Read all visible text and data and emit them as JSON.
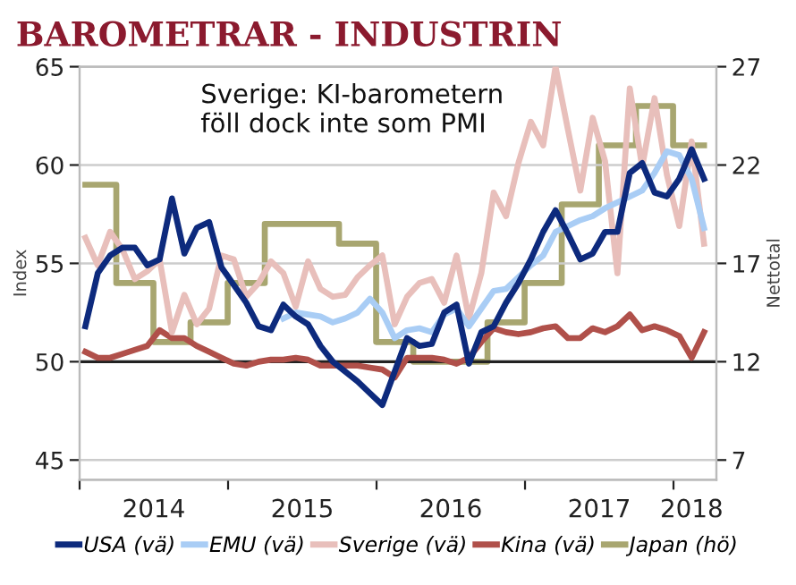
{
  "chart_data": {
    "type": "line",
    "title": "BAROMETRAR - INDUSTRIN",
    "ylabel": "Index",
    "y2label": "Nettotal",
    "annotations": [
      "Sverige: KI-barometern\nföll dock inte som PMI"
    ],
    "x": [
      "2014-01-15",
      "2014-02-15",
      "2014-03-15",
      "2014-04-15",
      "2014-05-15",
      "2014-06-15",
      "2014-07-15",
      "2014-08-15",
      "2014-09-15",
      "2014-10-15",
      "2014-11-15",
      "2014-12-15",
      "2015-01-15",
      "2015-02-15",
      "2015-03-15",
      "2015-04-15",
      "2015-05-15",
      "2015-06-15",
      "2015-07-15",
      "2015-08-15",
      "2015-09-15",
      "2015-10-15",
      "2015-11-15",
      "2015-12-15",
      "2016-01-15",
      "2016-02-15",
      "2016-03-15",
      "2016-04-15",
      "2016-05-15",
      "2016-06-15",
      "2016-07-15",
      "2016-08-15",
      "2016-09-15",
      "2016-10-15",
      "2016-11-15",
      "2016-12-15",
      "2017-01-15",
      "2017-02-15",
      "2017-03-15",
      "2017-04-15",
      "2017-05-15",
      "2017-06-15",
      "2017-07-15",
      "2017-08-15",
      "2017-09-15",
      "2017-10-15",
      "2017-11-15",
      "2017-12-15",
      "2018-01-15",
      "2018-02-15",
      "2018-03-15"
    ],
    "series": [
      {
        "name": "USA (vä)",
        "color": "#0d2a7d",
        "values": [
          51.8,
          54.5,
          55.4,
          55.8,
          55.8,
          54.9,
          55.2,
          58.3,
          55.5,
          56.8,
          57.1,
          54.8,
          53.9,
          53.0,
          51.8,
          51.6,
          52.9,
          52.3,
          51.9,
          50.8,
          50.0,
          49.5,
          49.0,
          48.4,
          47.8,
          49.5,
          51.2,
          50.8,
          50.9,
          52.5,
          52.9,
          49.9,
          51.5,
          51.8,
          53.0,
          54.0,
          55.2,
          56.6,
          57.7,
          56.5,
          55.2,
          55.5,
          56.6,
          56.6,
          59.6,
          60.1,
          58.6,
          58.4,
          59.3,
          60.8,
          59.3
        ]
      },
      {
        "name": "EMU (vä)",
        "color": "#a9cdf5",
        "values": [
          null,
          null,
          null,
          null,
          null,
          null,
          null,
          null,
          null,
          null,
          null,
          null,
          null,
          null,
          null,
          null,
          52.2,
          52.5,
          52.4,
          52.3,
          52.0,
          52.2,
          52.5,
          53.2,
          52.5,
          51.2,
          51.6,
          51.7,
          51.5,
          52.4,
          52.7,
          51.8,
          52.7,
          53.6,
          53.7,
          54.3,
          54.9,
          55.4,
          56.6,
          56.9,
          57.2,
          57.4,
          57.8,
          58.1,
          58.4,
          58.7,
          59.6,
          60.7,
          60.5,
          59.3,
          56.8
        ]
      },
      {
        "name": "Sverige (vä)",
        "color": "#e8bfbb",
        "values": [
          56.3,
          54.9,
          56.6,
          55.7,
          54.2,
          54.6,
          55.2,
          51.5,
          53.4,
          51.9,
          52.7,
          55.4,
          55.2,
          53.3,
          54.0,
          55.1,
          54.5,
          52.8,
          55.1,
          53.7,
          53.3,
          53.4,
          54.3,
          54.9,
          55.4,
          51.9,
          53.3,
          54.0,
          54.2,
          53.0,
          55.4,
          52.2,
          54.5,
          58.6,
          57.4,
          60.1,
          62.2,
          61.0,
          65.0,
          61.8,
          58.7,
          62.4,
          60.2,
          54.5,
          63.9,
          59.9,
          63.4,
          59.5,
          56.9,
          61.2,
          56.0
        ]
      },
      {
        "name": "Kina (vä)",
        "color": "#b0504a",
        "values": [
          50.5,
          50.2,
          50.2,
          50.4,
          50.6,
          50.8,
          51.6,
          51.2,
          51.2,
          50.8,
          50.5,
          50.2,
          49.9,
          49.8,
          50.0,
          50.1,
          50.1,
          50.2,
          50.1,
          49.8,
          49.8,
          49.8,
          49.8,
          49.7,
          49.6,
          49.2,
          50.2,
          50.2,
          50.2,
          50.1,
          49.9,
          50.2,
          51.0,
          51.7,
          51.5,
          51.4,
          51.5,
          51.7,
          51.8,
          51.2,
          51.2,
          51.7,
          51.5,
          51.8,
          52.4,
          51.6,
          51.8,
          51.6,
          51.3,
          50.2,
          51.5
        ]
      },
      {
        "name": "Japan (hö)",
        "type": "step",
        "axis": "y2",
        "color": "#a8a670",
        "values": [
          21,
          21,
          21,
          16,
          16,
          16,
          13,
          13,
          13,
          14,
          14,
          14,
          16,
          16,
          16,
          19,
          19,
          19,
          19,
          19,
          19,
          18,
          18,
          18,
          13,
          13,
          13,
          12,
          12,
          12,
          12,
          12,
          12,
          14,
          14,
          14,
          16,
          16,
          16,
          20,
          20,
          20,
          23,
          23,
          23,
          25,
          25,
          25,
          23,
          23,
          23
        ]
      }
    ],
    "ref_lines": [
      {
        "axis": "y",
        "value": 50,
        "color": "#222222"
      }
    ],
    "xlim": [
      "2014-01-01",
      "2018-04-15"
    ],
    "xticks": [
      {
        "value": "2014-01-01",
        "label": null
      },
      {
        "value": "2014-07-01",
        "label": "2014"
      },
      {
        "value": "2015-01-01",
        "label": null
      },
      {
        "value": "2015-07-01",
        "label": "2015"
      },
      {
        "value": "2016-01-01",
        "label": null
      },
      {
        "value": "2016-07-01",
        "label": "2016"
      },
      {
        "value": "2017-01-01",
        "label": null
      },
      {
        "value": "2017-07-01",
        "label": "2017"
      },
      {
        "value": "2018-01-01",
        "label": null
      },
      {
        "value": "2018-02-15",
        "label": "2018"
      }
    ],
    "ylim": [
      44,
      65
    ],
    "yticks": [
      45,
      50,
      55,
      60,
      65
    ],
    "y2lim": [
      6,
      27
    ],
    "y2ticks": [
      7,
      12,
      17,
      22,
      27
    ],
    "grid": "y",
    "legend": "bottom",
    "marker": "none",
    "line_style": "solid"
  }
}
